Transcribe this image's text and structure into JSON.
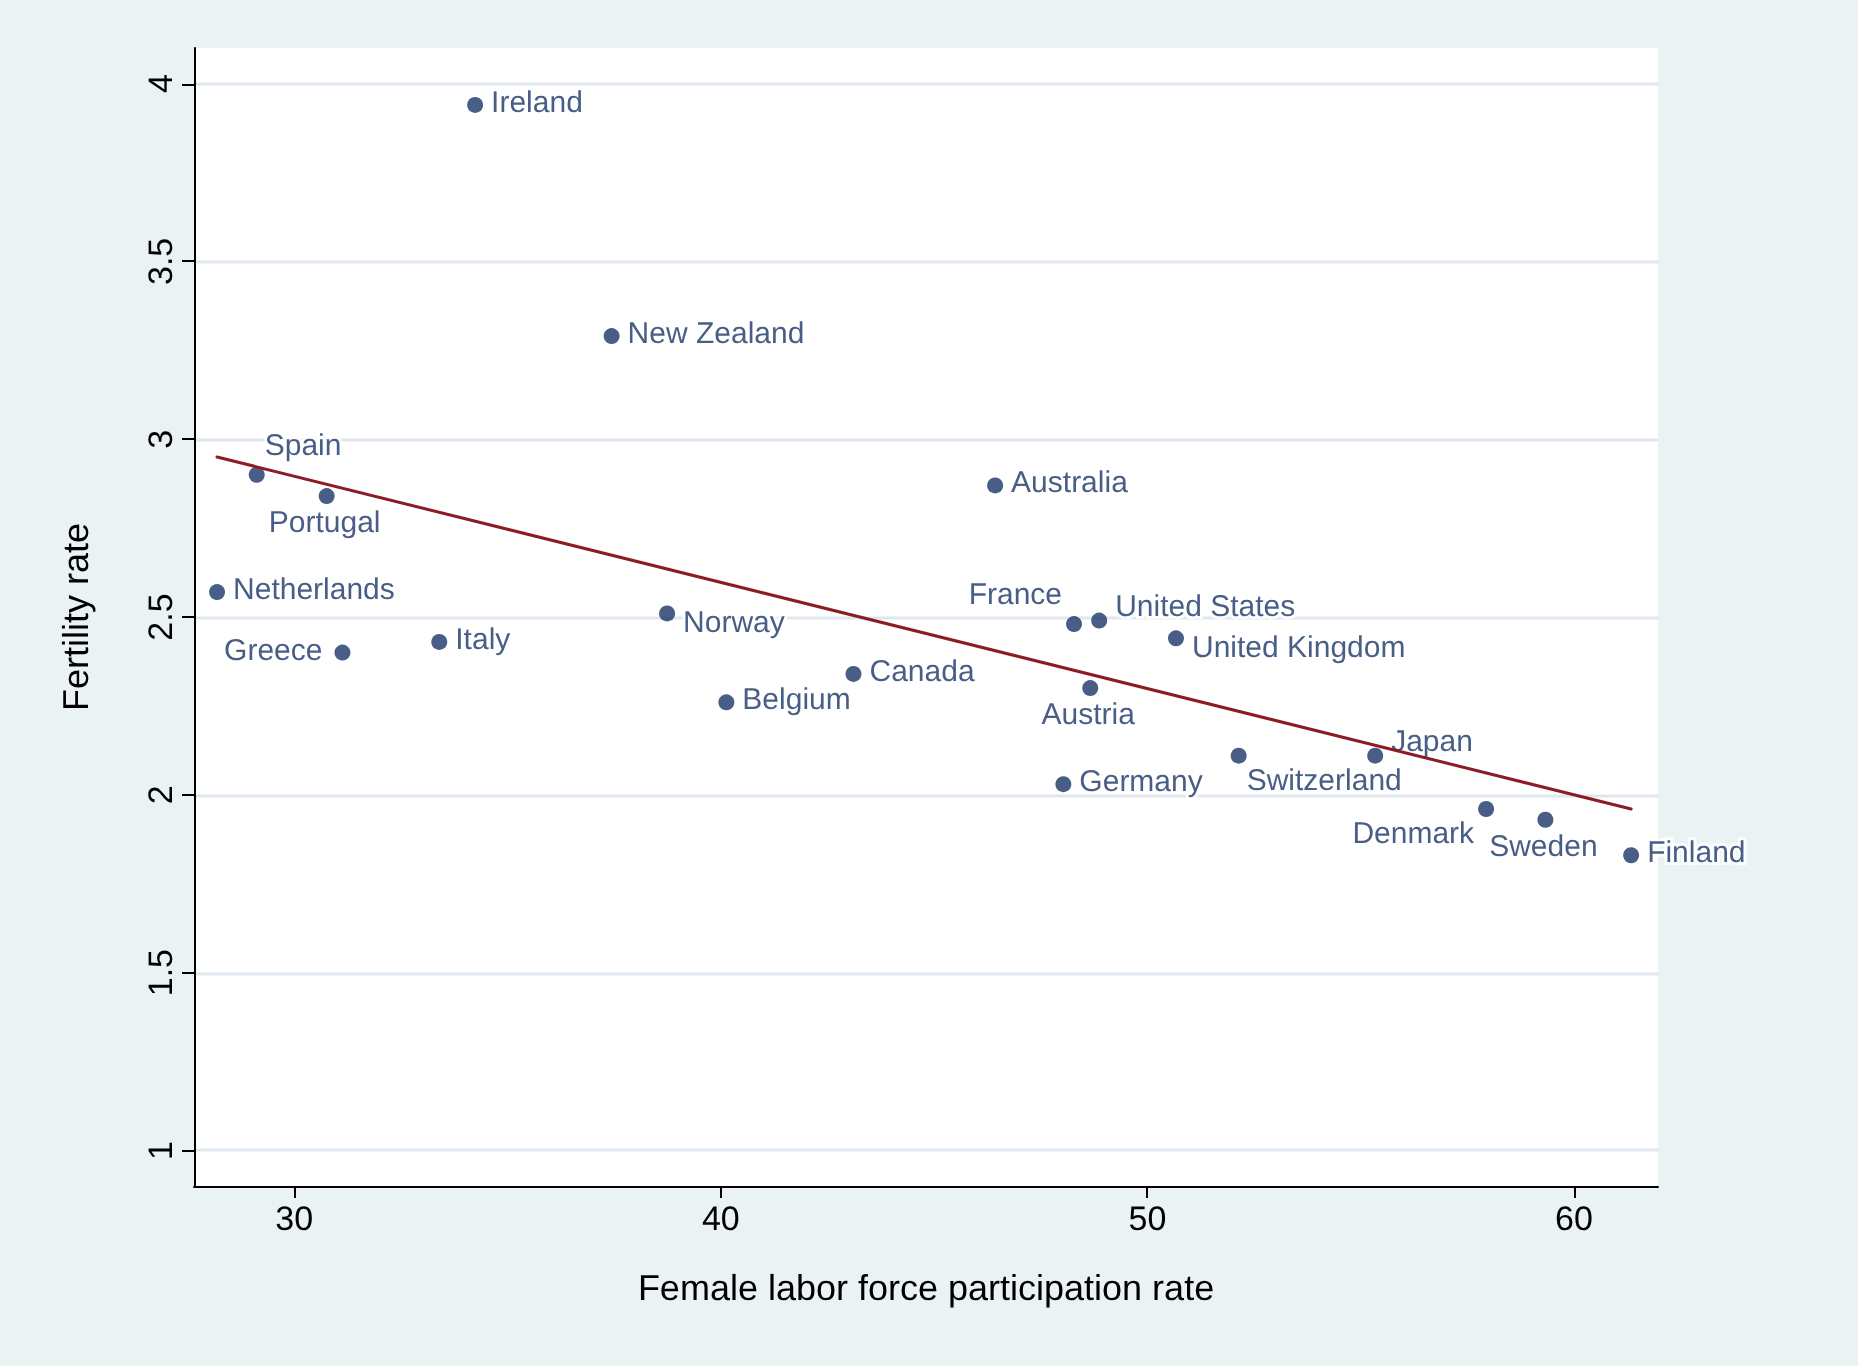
{
  "chart_data": {
    "type": "scatter",
    "xlabel": "Female labor force participation rate",
    "ylabel": "Fertility rate",
    "xlim": [
      27.65,
      61.97
    ],
    "xticks": [
      30,
      40,
      50,
      60
    ],
    "ylim": [
      0.9,
      4.1
    ],
    "yticks": [
      1,
      1.5,
      2,
      2.5,
      3,
      3.5,
      4
    ],
    "grid": "y",
    "series": [
      {
        "color": "#1a3668",
        "marker": "circle",
        "x": [
          34.24,
          37.44,
          29.12,
          30.76,
          46.43,
          28.19,
          31.13,
          33.4,
          38.74,
          40.13,
          43.11,
          48.28,
          48.87,
          50.67,
          48.66,
          48.03,
          52.14,
          55.34,
          57.94,
          59.33,
          61.34
        ],
        "values": [
          3.94,
          3.29,
          2.9,
          2.84,
          2.87,
          2.57,
          2.4,
          2.43,
          2.51,
          2.26,
          2.34,
          2.48,
          2.49,
          2.44,
          2.3,
          2.03,
          2.11,
          2.11,
          1.96,
          1.93,
          1.83
        ],
        "value_labels": [
          "Ireland",
          "New Zealand",
          "Spain",
          "Portugal",
          "Australia",
          "Netherlands",
          "Greece",
          "Italy",
          "Norway",
          "Belgium",
          "Canada",
          "France",
          "United States",
          "United Kingdom",
          "Austria",
          "Germany",
          "Switzerland",
          "Japan",
          "Denmark",
          "Sweden",
          "Finland"
        ]
      },
      {
        "type": "line",
        "color": "#8b1c24",
        "marker": "none",
        "line_style": "solid",
        "x": [
          28.19,
          61.34
        ],
        "values": [
          2.95,
          1.96
        ]
      }
    ]
  }
}
